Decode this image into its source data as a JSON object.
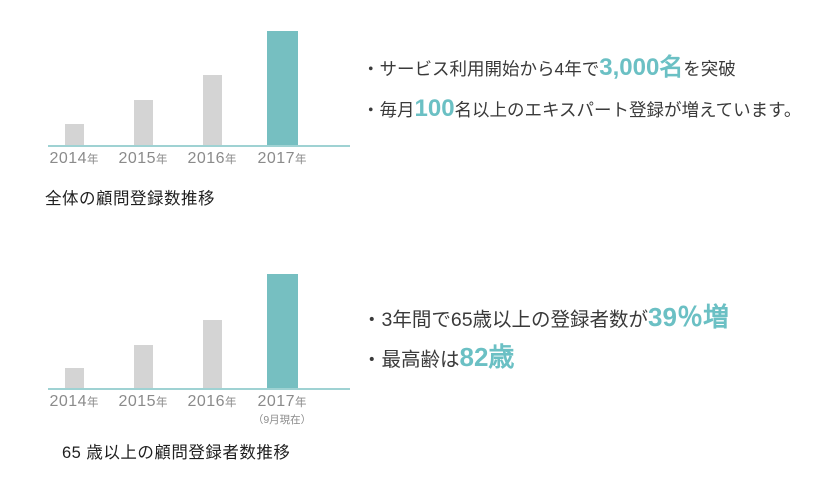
{
  "colors": {
    "bar_highlight": "#76bfc1",
    "bar_default": "#d4d4d4",
    "axis_line": "#9fd2d3",
    "axis_label": "#8b8b8b",
    "body_text": "#3a3a3a",
    "accent_text": "#6bc0c4",
    "caption_text": "#1f1f1f"
  },
  "chart_data": [
    {
      "type": "bar",
      "title": "全体の顧問登録数推移",
      "categories": [
        "2014",
        "2015",
        "2016",
        "2017"
      ],
      "category_suffix": "年",
      "sub_labels": [
        "",
        "",
        "",
        ""
      ],
      "relative_values": [
        0.19,
        0.4,
        0.62,
        1.0
      ],
      "highlight_index": 3,
      "value_axis": "hidden",
      "grid": false,
      "legend": "none",
      "reading": "Bars grow yearly; 2017 highlighted bar corresponds to surpassing 3,000 registrants in 4 years"
    },
    {
      "type": "bar",
      "title": "65 歳以上の顧問登録者数推移",
      "categories": [
        "2014",
        "2015",
        "2016",
        "2017"
      ],
      "category_suffix": "年",
      "sub_labels": [
        "",
        "",
        "",
        "（9月現在）"
      ],
      "relative_values": [
        0.18,
        0.38,
        0.6,
        1.0
      ],
      "highlight_index": 3,
      "value_axis": "hidden",
      "grid": false,
      "legend": "none",
      "reading": "Bars grow yearly; registrants aged 65+ up 39% over 3 years"
    }
  ],
  "stats_top": {
    "lines": [
      {
        "segments": [
          {
            "text": "・サービス利用開始から4年で",
            "accent": false
          },
          {
            "text": "3,000名",
            "accent": true
          },
          {
            "text": "を突破",
            "accent": false
          }
        ]
      },
      {
        "segments": [
          {
            "text": "・毎月",
            "accent": false
          },
          {
            "text": "100",
            "accent": true
          },
          {
            "text": "名以上のエキスパート登録が増えています。",
            "accent": false
          }
        ]
      }
    ]
  },
  "stats_bottom": {
    "lines": [
      {
        "segments": [
          {
            "text": "・3年間で65歳以上の登録者数が",
            "accent": false
          },
          {
            "text": "39％増",
            "accent": true
          }
        ]
      },
      {
        "segments": [
          {
            "text": "・最高齢は",
            "accent": false
          },
          {
            "text": "82歳",
            "accent": true
          }
        ]
      }
    ]
  }
}
